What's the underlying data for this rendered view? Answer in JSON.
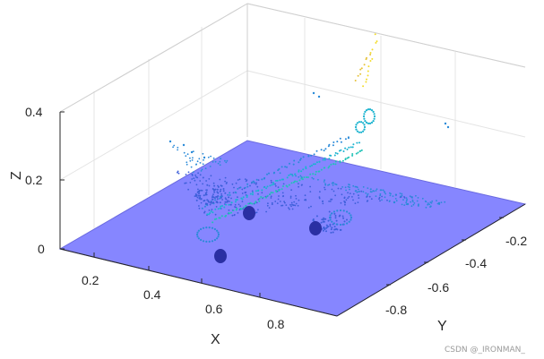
{
  "chart_data": {
    "type": "scatter",
    "view": "3d",
    "xlabel": "X",
    "ylabel": "Y",
    "zlabel": "Z",
    "x_ticks": [
      "0.2",
      "0.4",
      "0.6",
      "0.8"
    ],
    "y_ticks": [
      "-0.2",
      "-0.4",
      "-0.6",
      "-0.8"
    ],
    "z_ticks": [
      "0",
      "0.2",
      "0.4"
    ],
    "xlim": [
      0.1,
      0.95
    ],
    "ylim": [
      -0.95,
      -0.1
    ],
    "zlim": [
      0,
      0.42
    ],
    "grid": true,
    "colormap": "parula (color by Z)",
    "ground_plane": {
      "z": 0,
      "color": "#7f7fff"
    },
    "series": [
      {
        "points": "sparse point cloud of an airplane shape (fuselage, wings, tail, engines) colored by height"
      }
    ]
  },
  "watermark": "CSDN @_IRONMAN_"
}
